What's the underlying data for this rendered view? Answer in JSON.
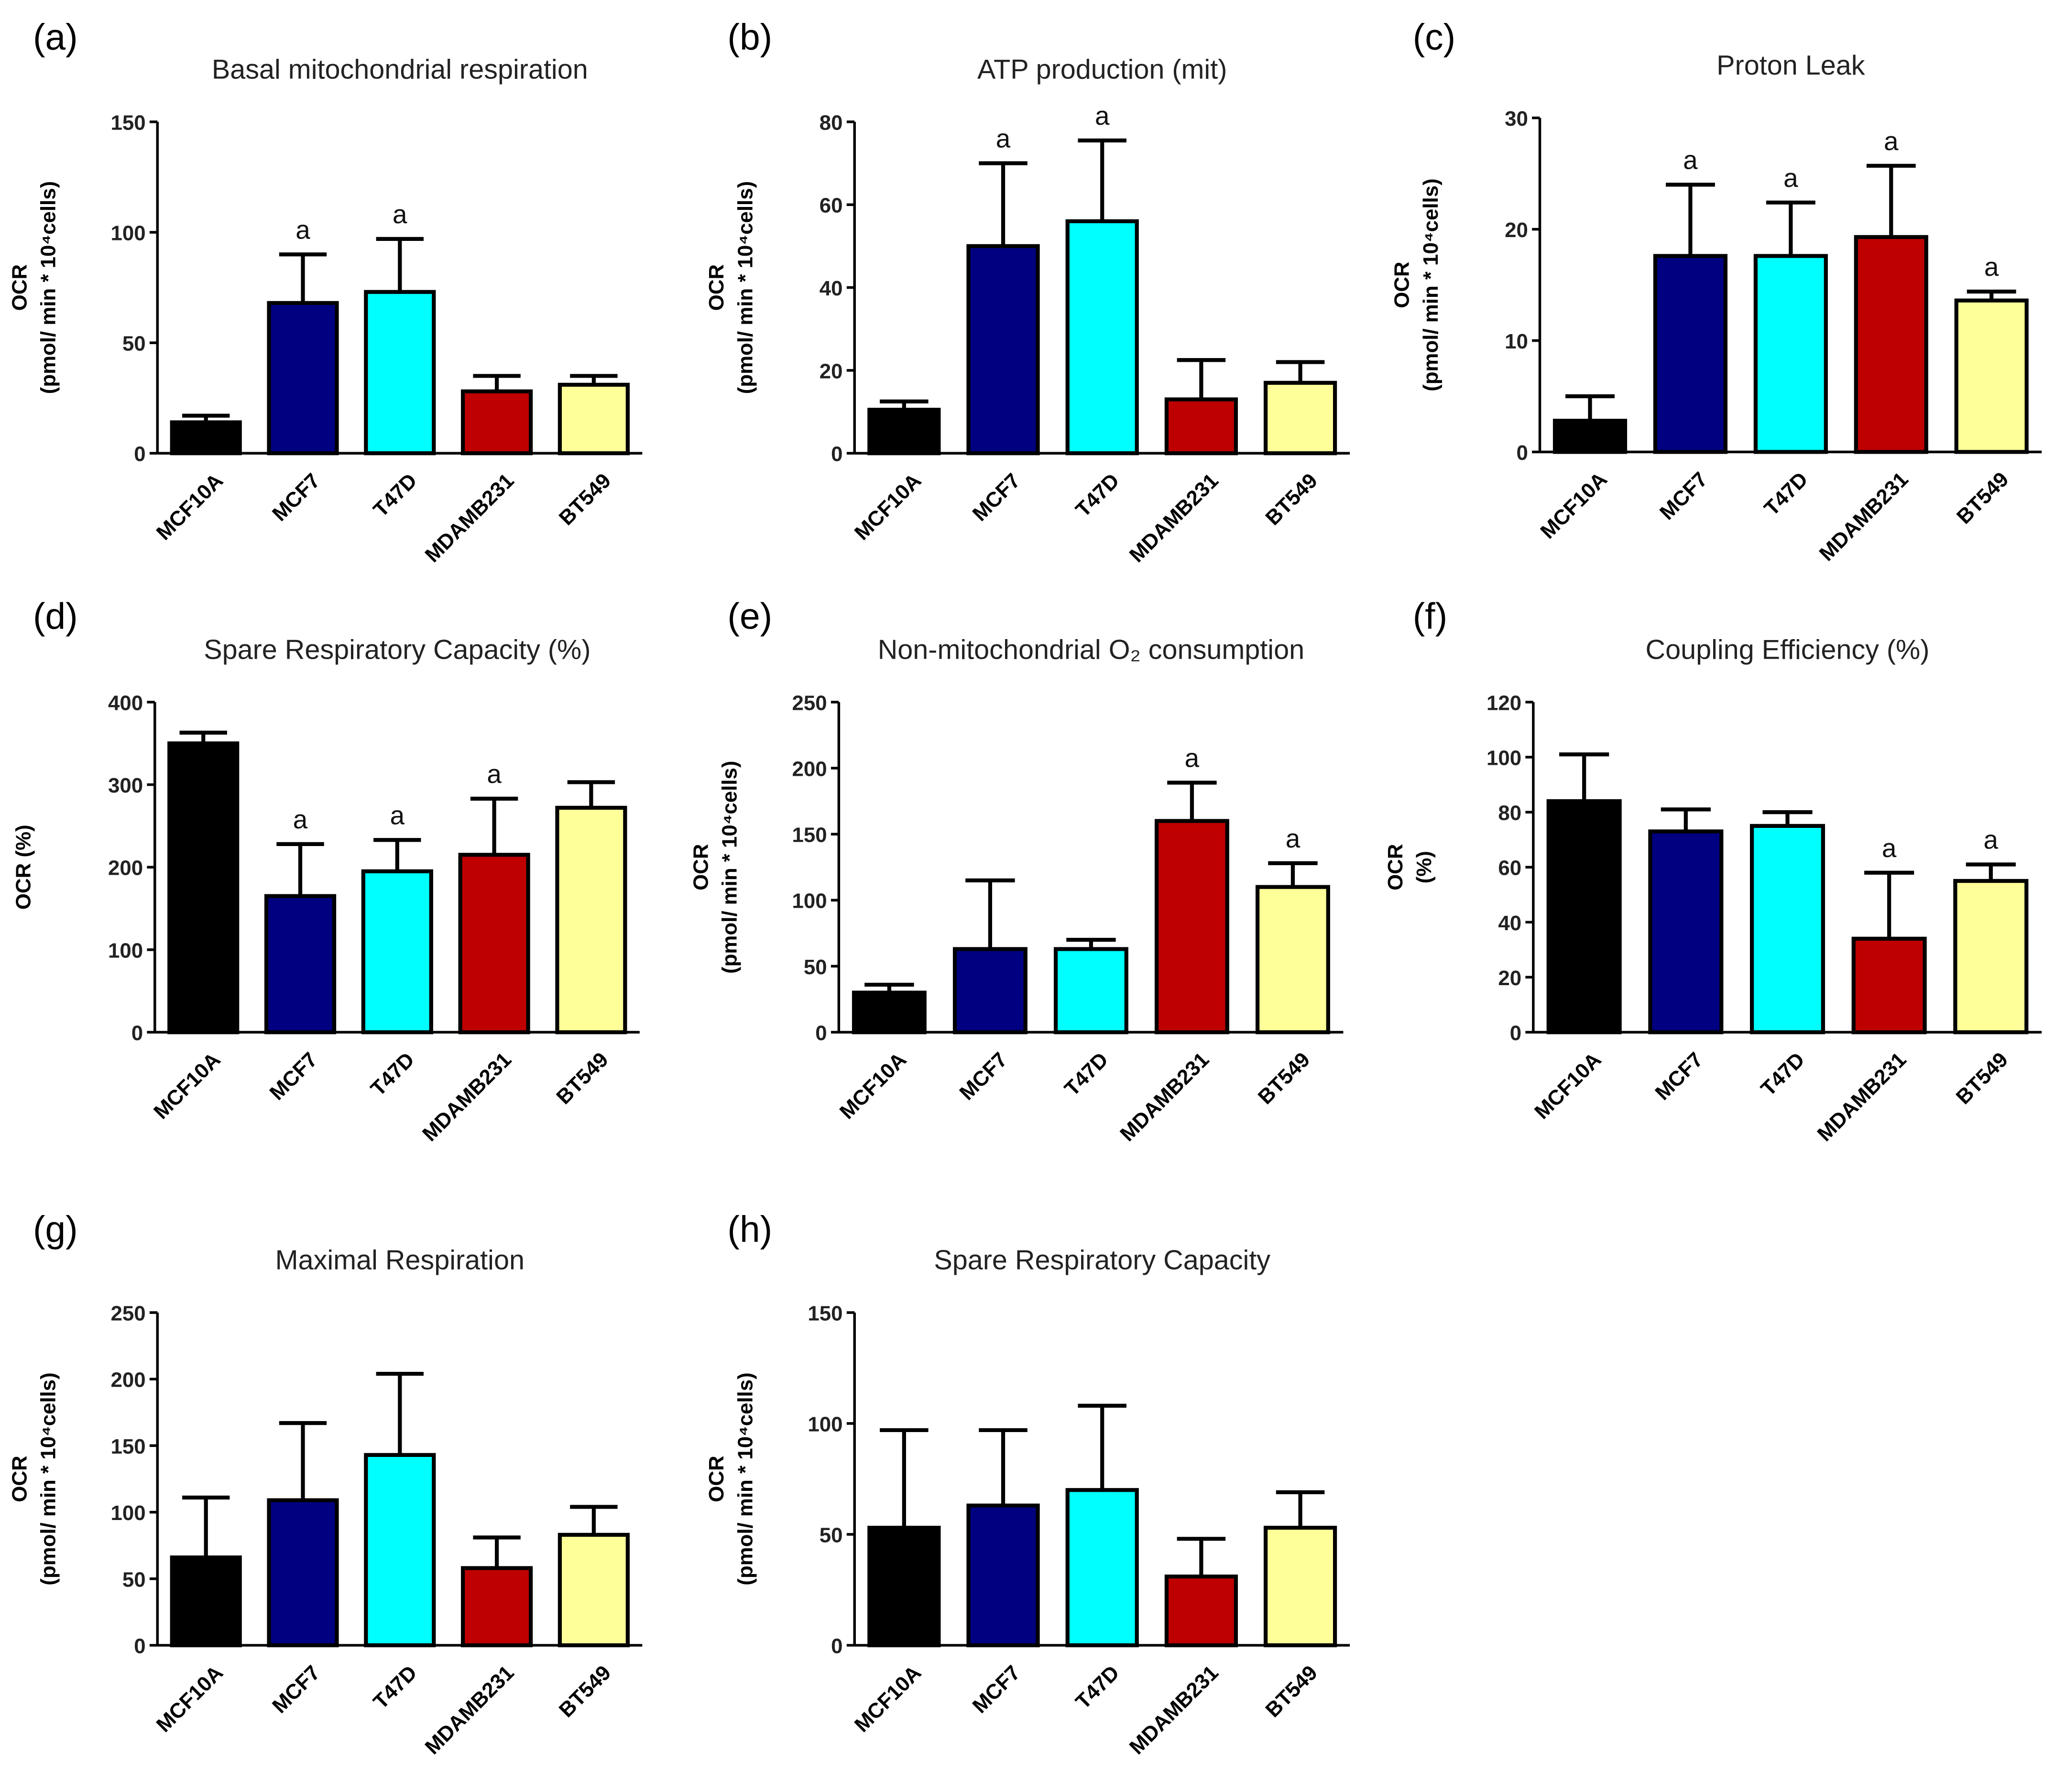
{
  "colors": {
    "MCF10A": "#000000",
    "MCF7": "#000080",
    "T47D": "#00ffff",
    "MDAMB231": "#bf0000",
    "BT549": "#ffff99"
  },
  "chart_data": [
    {
      "type": "bar",
      "panel": "(a)",
      "title": "Basal mitochondrial respiration",
      "ylabel": [
        "OCR",
        "(pmol/ min * 10⁴cells)"
      ],
      "ylim": [
        0,
        150
      ],
      "yticks": [
        0,
        50,
        100,
        150
      ],
      "categories": [
        "MCF10A",
        "MCF7",
        "T47D",
        "MDAMB231",
        "BT549"
      ],
      "values": [
        14,
        68,
        73,
        28,
        31
      ],
      "error_upper": [
        17,
        90,
        97,
        35,
        35
      ],
      "significance": [
        "",
        "a",
        "a",
        "",
        ""
      ]
    },
    {
      "type": "bar",
      "panel": "(b)",
      "title": "ATP production (mit)",
      "ylabel": [
        "OCR",
        "(pmol/ min * 10⁴cells)"
      ],
      "ylim": [
        0,
        80
      ],
      "yticks": [
        0,
        20,
        40,
        60,
        80
      ],
      "categories": [
        "MCF10A",
        "MCF7",
        "T47D",
        "MDAMB231",
        "BT549"
      ],
      "values": [
        10.5,
        50,
        56,
        13,
        17
      ],
      "error_upper": [
        12.5,
        70,
        75.5,
        22.5,
        22
      ],
      "significance": [
        "",
        "a",
        "a",
        "",
        ""
      ]
    },
    {
      "type": "bar",
      "panel": "(c)",
      "title": "Proton Leak",
      "ylabel": [
        "OCR",
        "(pmol/ min * 10⁴cells)"
      ],
      "ylim": [
        0,
        30
      ],
      "yticks": [
        0,
        10,
        20,
        30
      ],
      "categories": [
        "MCF10A",
        "MCF7",
        "T47D",
        "MDAMB231",
        "BT549"
      ],
      "values": [
        2.8,
        17.6,
        17.6,
        19.3,
        13.6
      ],
      "error_upper": [
        5,
        24,
        22.4,
        25.7,
        14.4
      ],
      "significance": [
        "",
        "a",
        "a",
        "a",
        "a"
      ]
    },
    {
      "type": "bar",
      "panel": "(d)",
      "title": "Spare Respiratory Capacity (%)",
      "ylabel": [
        "OCR (%)"
      ],
      "ylim": [
        0,
        400
      ],
      "yticks": [
        0,
        100,
        200,
        300,
        400
      ],
      "categories": [
        "MCF10A",
        "MCF7",
        "T47D",
        "MDAMB231",
        "BT549"
      ],
      "values": [
        350,
        165,
        195,
        215,
        272
      ],
      "error_upper": [
        363,
        228,
        233,
        283,
        303
      ],
      "significance": [
        "",
        "a",
        "a",
        "a",
        ""
      ]
    },
    {
      "type": "bar",
      "panel": "(e)",
      "title": "Non-mitochondrial O₂ consumption",
      "ylabel": [
        "OCR",
        "(pmol/ min * 10⁴cells)"
      ],
      "ylim": [
        0,
        250
      ],
      "yticks": [
        0,
        50,
        100,
        150,
        200,
        250
      ],
      "categories": [
        "MCF10A",
        "MCF7",
        "T47D",
        "MDAMB231",
        "BT549"
      ],
      "values": [
        30,
        63,
        63,
        160,
        110
      ],
      "error_upper": [
        36,
        115,
        70,
        189,
        128
      ],
      "significance": [
        "",
        "",
        "",
        "a",
        "a"
      ]
    },
    {
      "type": "bar",
      "panel": "(f)",
      "title": "Coupling Efficiency (%)",
      "ylabel": [
        "OCR",
        "(%)"
      ],
      "ylim": [
        0,
        120
      ],
      "yticks": [
        0,
        20,
        40,
        60,
        80,
        100,
        120
      ],
      "categories": [
        "MCF10A",
        "MCF7",
        "T47D",
        "MDAMB231",
        "BT549"
      ],
      "values": [
        84,
        73,
        75,
        34,
        55
      ],
      "error_upper": [
        101,
        81,
        80,
        58,
        61
      ],
      "significance": [
        "",
        "",
        "",
        "a",
        "a"
      ]
    },
    {
      "type": "bar",
      "panel": "(g)",
      "title": "Maximal Respiration",
      "ylabel": [
        "OCR",
        "(pmol/ min * 10⁴cells)"
      ],
      "ylim": [
        0,
        250
      ],
      "yticks": [
        0,
        50,
        100,
        150,
        200,
        250
      ],
      "categories": [
        "MCF10A",
        "MCF7",
        "T47D",
        "MDAMB231",
        "BT549"
      ],
      "values": [
        66,
        109,
        143,
        58,
        83
      ],
      "error_upper": [
        111,
        167,
        204,
        81,
        104
      ],
      "significance": [
        "",
        "",
        "",
        "",
        ""
      ]
    },
    {
      "type": "bar",
      "panel": "(h)",
      "title": "Spare Respiratory Capacity",
      "ylabel": [
        "OCR",
        "(pmol/ min * 10⁴cells)"
      ],
      "ylim": [
        0,
        150
      ],
      "yticks": [
        0,
        50,
        100,
        150
      ],
      "categories": [
        "MCF10A",
        "MCF7",
        "T47D",
        "MDAMB231",
        "BT549"
      ],
      "values": [
        53,
        63,
        70,
        31,
        53
      ],
      "error_upper": [
        97,
        97,
        108,
        48,
        69
      ],
      "significance": [
        "",
        "",
        "",
        "",
        ""
      ]
    }
  ]
}
